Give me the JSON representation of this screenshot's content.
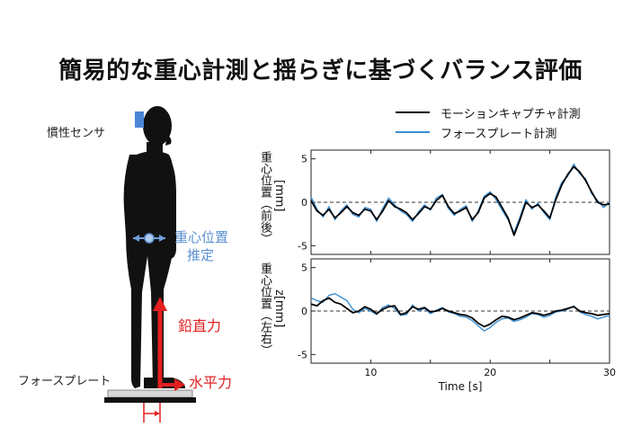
{
  "title": "簡易的な重心計測と揺らぎに基づくバランス評価",
  "figure": {
    "inertial_sensor_label": "慣性センサ",
    "cog_estimate_label_line1": "重心位置",
    "cog_estimate_label_line2": "推定",
    "vertical_force_label": "鉛直力",
    "horizontal_force_label": "水平力",
    "force_plate_label": "フォースプレート"
  },
  "colors": {
    "silhouette": "#111111",
    "sensor": "#4a86d6",
    "force_arrow": "#e21f1f",
    "mocap_line": "#000000",
    "forceplate_line": "#3a8fd4"
  },
  "chart_data": [
    {
      "type": "line",
      "ylabel_line1": "重心位置（前後）",
      "ylabel_line2": "[mm]",
      "xlim": [
        5,
        30
      ],
      "ylim": [
        -6,
        6
      ],
      "yticks": [
        -5,
        0,
        5
      ],
      "grid": false,
      "reference_line": 0,
      "legend_position": "top-right",
      "series": [
        {
          "name": "モーションキャプチャ計測",
          "x": [
            5,
            5.5,
            6,
            6.5,
            7,
            7.5,
            8,
            8.5,
            9,
            9.5,
            10,
            10.5,
            11,
            11.5,
            12,
            12.5,
            13,
            13.5,
            14,
            14.5,
            15,
            15.5,
            16,
            16.5,
            17,
            17.5,
            18,
            18.5,
            19,
            19.5,
            20,
            20.5,
            21,
            21.5,
            22,
            22.5,
            23,
            23.5,
            24,
            24.5,
            25,
            25.5,
            26,
            26.5,
            27,
            27.5,
            28,
            28.5,
            29,
            29.5,
            30
          ],
          "values": [
            0.2,
            -1.0,
            -1.5,
            -0.8,
            -1.8,
            -1.2,
            -0.5,
            -1.2,
            -1.5,
            -0.8,
            -1.0,
            -2.0,
            -1.0,
            0.2,
            -0.5,
            -0.8,
            -1.2,
            -2.0,
            -1.3,
            -0.5,
            -0.8,
            0.2,
            0.8,
            -0.5,
            -1.3,
            -1.0,
            -0.6,
            -2.0,
            -1.2,
            0.5,
            1.0,
            0.6,
            -0.6,
            -1.8,
            -3.8,
            -2.0,
            0.0,
            -0.6,
            -0.3,
            -1.0,
            -1.8,
            0.3,
            2.0,
            3.2,
            4.1,
            3.5,
            2.5,
            1.2,
            0.0,
            -0.3,
            -0.2
          ]
        },
        {
          "name": "フォースプレート計測",
          "x": [
            5,
            5.5,
            6,
            6.5,
            7,
            7.5,
            8,
            8.5,
            9,
            9.5,
            10,
            10.5,
            11,
            11.5,
            12,
            12.5,
            13,
            13.5,
            14,
            14.5,
            15,
            15.5,
            16,
            16.5,
            17,
            17.5,
            18,
            18.5,
            19,
            19.5,
            20,
            20.5,
            21,
            21.5,
            22,
            22.5,
            23,
            23.5,
            24,
            24.5,
            25,
            25.5,
            26,
            26.5,
            27,
            27.5,
            28,
            28.5,
            29,
            29.5,
            30
          ],
          "values": [
            0.6,
            -0.8,
            -1.7,
            -0.5,
            -2.0,
            -1.0,
            -0.3,
            -1.4,
            -1.7,
            -0.6,
            -0.8,
            -2.2,
            -0.7,
            0.5,
            -0.3,
            -1.0,
            -1.4,
            -2.2,
            -1.1,
            -0.3,
            -0.9,
            0.5,
            0.9,
            -0.7,
            -1.5,
            -0.8,
            -0.4,
            -2.2,
            -1.0,
            0.7,
            1.2,
            0.3,
            -0.9,
            -2.0,
            -3.5,
            -1.7,
            0.3,
            -0.8,
            -0.1,
            -1.2,
            -2.0,
            0.6,
            2.3,
            3.0,
            4.4,
            3.3,
            2.7,
            1.0,
            0.2,
            -0.6,
            0.0
          ]
        }
      ]
    },
    {
      "type": "line",
      "ylabel_line1": "重心位置（左右）",
      "ylabel_line2": "z[mm]",
      "xlabel": "Time [s]",
      "xlim": [
        5,
        30
      ],
      "ylim": [
        -6,
        6
      ],
      "yticks": [
        -5,
        0,
        5
      ],
      "xticks": [
        10,
        20,
        30
      ],
      "grid": false,
      "reference_line": 0,
      "series": [
        {
          "name": "モーションキャプチャ計測",
          "x": [
            5,
            5.5,
            6,
            6.5,
            7,
            7.5,
            8,
            8.5,
            9,
            9.5,
            10,
            10.5,
            11,
            11.5,
            12,
            12.5,
            13,
            13.5,
            14,
            14.5,
            15,
            15.5,
            16,
            16.5,
            17,
            17.5,
            18,
            18.5,
            19,
            19.5,
            20,
            20.5,
            21,
            21.5,
            22,
            22.5,
            23,
            23.5,
            24,
            24.5,
            25,
            25.5,
            26,
            26.5,
            27,
            27.5,
            28,
            28.5,
            29,
            29.5,
            30
          ],
          "values": [
            0.8,
            0.6,
            1.2,
            1.5,
            1.0,
            0.8,
            0.3,
            -0.2,
            0.0,
            0.5,
            0.2,
            -0.3,
            0.2,
            0.5,
            0.6,
            -0.4,
            -0.2,
            0.5,
            0.2,
            0.4,
            -0.1,
            0.0,
            0.3,
            0.0,
            -0.2,
            -0.4,
            -0.5,
            -0.8,
            -1.4,
            -1.8,
            -1.5,
            -1.0,
            -0.6,
            -0.7,
            -1.0,
            -0.8,
            -0.5,
            -0.2,
            -0.3,
            -0.5,
            -0.3,
            0.0,
            0.1,
            0.3,
            0.5,
            0.0,
            -0.2,
            -0.3,
            -0.5,
            -0.4,
            -0.3
          ]
        },
        {
          "name": "フォースプレート計測",
          "x": [
            5,
            5.5,
            6,
            6.5,
            7,
            7.5,
            8,
            8.5,
            9,
            9.5,
            10,
            10.5,
            11,
            11.5,
            12,
            12.5,
            13,
            13.5,
            14,
            14.5,
            15,
            15.5,
            16,
            16.5,
            17,
            17.5,
            18,
            18.5,
            19,
            19.5,
            20,
            20.5,
            21,
            21.5,
            22,
            22.5,
            23,
            23.5,
            24,
            24.5,
            25,
            25.5,
            26,
            26.5,
            27,
            27.5,
            28,
            28.5,
            29,
            29.5,
            30
          ],
          "values": [
            1.5,
            1.2,
            1.0,
            1.8,
            2.0,
            1.6,
            1.2,
            0.2,
            -0.2,
            0.3,
            0.0,
            -0.4,
            0.4,
            0.7,
            0.3,
            -0.5,
            -0.4,
            0.7,
            0.0,
            0.3,
            -0.3,
            0.1,
            0.4,
            -0.1,
            -0.3,
            -0.6,
            -0.7,
            -1.1,
            -1.7,
            -2.3,
            -1.9,
            -1.3,
            -0.9,
            -0.8,
            -1.2,
            -1.0,
            -0.7,
            -0.3,
            -0.4,
            -0.7,
            -0.5,
            -0.1,
            0.0,
            0.2,
            0.6,
            -0.1,
            -0.4,
            -0.6,
            -0.9,
            -0.7,
            -0.5
          ]
        }
      ]
    }
  ]
}
